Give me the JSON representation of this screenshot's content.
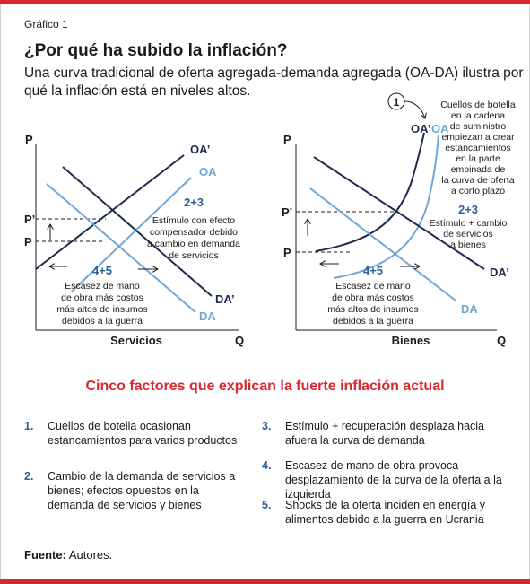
{
  "figure_label": "Gráfico 1",
  "title": "¿Por qué ha subido la inflación?",
  "subtitle": "Una curva tradicional de oferta agregada-demanda agregada (OA-DA) ilustra por qué la inflación está en niveles altos.",
  "colors": {
    "navy": "#1f2a4d",
    "light_blue": "#6fa6d6",
    "label_blue": "#2f5f9a",
    "accent_red": "#d7282f",
    "text": "#1a1a1a"
  },
  "left_diagram": {
    "axis_y": "P",
    "axis_x": "Q",
    "x_title": "Servicios",
    "p_label": "P",
    "p_prime_label": "P’",
    "curves": {
      "oa_prime": "OA’",
      "oa": "OA",
      "da_prime": "DA’",
      "da": "DA"
    },
    "annotation_23": {
      "number": "2+3",
      "lines": [
        "Estímulo con efecto",
        "compensador debido",
        "a cambio en demanda",
        "de servicios"
      ]
    },
    "annotation_45": {
      "number": "4+5",
      "lines": [
        "Escasez de mano",
        "de obra más costos",
        "más altos de insumos",
        "debidos a la guerra"
      ]
    }
  },
  "right_diagram": {
    "axis_y": "P",
    "axis_x": "Q",
    "x_title": "Bienes",
    "p_label": "P",
    "p_prime_label": "P’",
    "curves": {
      "oa_prime": "OA’",
      "oa": "OA",
      "da_prime": "DA’",
      "da": "DA"
    },
    "badge": "1",
    "annotation_1": {
      "lines": [
        "Cuellos de botella",
        "en la cadena",
        "de suministro",
        "empiezan a crear",
        "estancamientos",
        "en la parte",
        "empinada de",
        "la curva de oferta",
        "a corto plazo"
      ]
    },
    "annotation_23": {
      "number": "2+3",
      "lines": [
        "Estímulo + cambio",
        "de servicios",
        "a bienes"
      ]
    },
    "annotation_45": {
      "number": "4+5",
      "lines": [
        "Escasez de mano",
        "de obra más costos",
        "más altos de insumos",
        "debidos a la guerra"
      ]
    }
  },
  "factors_title": "Cinco factores que explican la fuerte inflación actual",
  "factors": [
    {
      "num": "1.",
      "text": "Cuellos de botella ocasionan estancamientos para varios productos"
    },
    {
      "num": "2.",
      "text": "Cambio de la demanda de servicios a bienes; efectos opuestos en la demanda de servicios y bienes"
    },
    {
      "num": "3.",
      "text": "Estímulo + recuperación desplaza hacia afuera la curva de demanda"
    },
    {
      "num": "4.",
      "text": "Escasez de mano de obra provoca desplazamiento de la curva de la oferta a la izquierda"
    },
    {
      "num": "5.",
      "text": "Shocks de la oferta inciden en energía y alimentos debido a la guerra en Ucrania"
    }
  ],
  "source_label": "Fuente:",
  "source_text": "Autores."
}
